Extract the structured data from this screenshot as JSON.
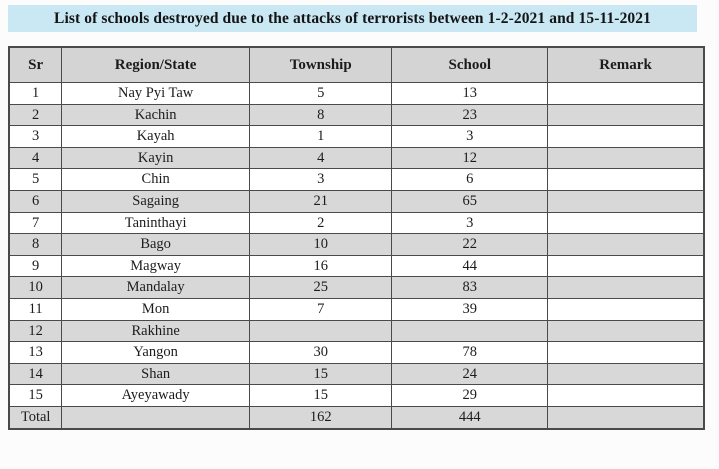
{
  "title": "List of schools destroyed due to the attacks of terrorists between 1-2-2021 and 15-11-2021",
  "colors": {
    "title_background": "#c9e8f4",
    "header_background": "#d4d4d4",
    "shaded_row_background": "#d8d8d8",
    "border": "#4a4a4a",
    "text": "#1c1c1c"
  },
  "table": {
    "columns": [
      "Sr",
      "Region/State",
      "Township",
      "School",
      "Remark"
    ],
    "rows": [
      {
        "sr": "1",
        "region": "Nay Pyi Taw",
        "township": "5",
        "school": "13",
        "remark": ""
      },
      {
        "sr": "2",
        "region": "Kachin",
        "township": "8",
        "school": "23",
        "remark": ""
      },
      {
        "sr": "3",
        "region": "Kayah",
        "township": "1",
        "school": "3",
        "remark": ""
      },
      {
        "sr": "4",
        "region": "Kayin",
        "township": "4",
        "school": "12",
        "remark": ""
      },
      {
        "sr": "5",
        "region": "Chin",
        "township": "3",
        "school": "6",
        "remark": ""
      },
      {
        "sr": "6",
        "region": "Sagaing",
        "township": "21",
        "school": "65",
        "remark": ""
      },
      {
        "sr": "7",
        "region": "Taninthayi",
        "township": "2",
        "school": "3",
        "remark": ""
      },
      {
        "sr": "8",
        "region": "Bago",
        "township": "10",
        "school": "22",
        "remark": ""
      },
      {
        "sr": "9",
        "region": "Magway",
        "township": "16",
        "school": "44",
        "remark": ""
      },
      {
        "sr": "10",
        "region": "Mandalay",
        "township": "25",
        "school": "83",
        "remark": ""
      },
      {
        "sr": "11",
        "region": "Mon",
        "township": "7",
        "school": "39",
        "remark": ""
      },
      {
        "sr": "12",
        "region": "Rakhine",
        "township": "",
        "school": "",
        "remark": ""
      },
      {
        "sr": "13",
        "region": "Yangon",
        "township": "30",
        "school": "78",
        "remark": ""
      },
      {
        "sr": "14",
        "region": "Shan",
        "township": "15",
        "school": "24",
        "remark": ""
      },
      {
        "sr": "15",
        "region": "Ayeyawady",
        "township": "15",
        "school": "29",
        "remark": ""
      },
      {
        "sr": "Total",
        "region": "",
        "township": "162",
        "school": "444",
        "remark": ""
      }
    ]
  }
}
